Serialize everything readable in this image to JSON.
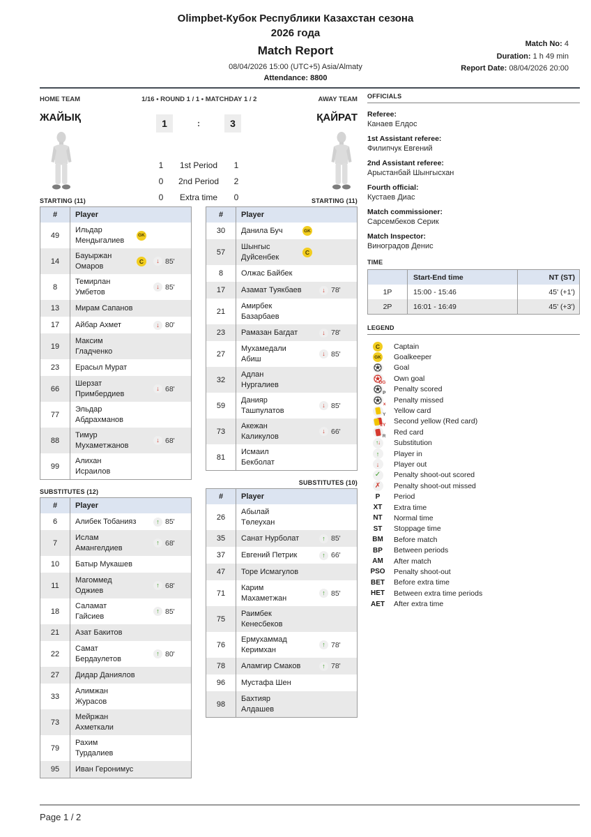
{
  "colors": {
    "table_header_bg": "#dce4f1",
    "row_alt_bg": "#e9e9e9",
    "badge_yellow": "#f2cd1f",
    "player_in_green": "#3a9d23",
    "player_out_red": "#cf3a2e"
  },
  "header": {
    "title_line1": "Olimpbet-Кубок Республики Казахстан сезона",
    "title_line2": "2026 года",
    "report_title": "Match Report",
    "datetime": "08/04/2026 15:00 (UTC+5) Asia/Almaty",
    "attendance": "Attendance: 8800",
    "match_no_label": "Match No:",
    "match_no_value": "4",
    "duration_label": "Duration:",
    "duration_value": "1 h 49 min",
    "report_date_label": "Report Date:",
    "report_date_value": "08/04/2026 20:00"
  },
  "match": {
    "home_team_label": "HOME TEAM",
    "away_team_label": "AWAY TEAM",
    "stage_line": "1/16 • ROUND 1 / 1 • MATCHDAY 1 / 2",
    "home_team": "ЖАЙЫҚ",
    "away_team": "ҚАЙРАТ",
    "score_home": "1",
    "score_separator": ":",
    "score_away": "3",
    "periods": [
      {
        "home": "1",
        "label": "1st Period",
        "away": "1"
      },
      {
        "home": "0",
        "label": "2nd Period",
        "away": "2"
      },
      {
        "home": "0",
        "label": "Extra time",
        "away": "0"
      }
    ]
  },
  "lineups": {
    "header_num": "#",
    "header_player": "Player",
    "home": {
      "starting_label": "STARTING (11)",
      "subs_label": "SUBSTITUTES (12)",
      "starting": [
        {
          "num": "49",
          "name": "Ильдар Мендыгалиев",
          "badge": "GK"
        },
        {
          "num": "14",
          "name": "Бауыржан Омаров",
          "badge": "C",
          "sub": "out",
          "minute": "85'"
        },
        {
          "num": "8",
          "name": "Темирлан Умбетов",
          "sub": "out",
          "minute": "85'"
        },
        {
          "num": "13",
          "name": "Мирам Сапанов"
        },
        {
          "num": "17",
          "name": "Айбар Ахмет",
          "sub": "out",
          "minute": "80'"
        },
        {
          "num": "19",
          "name": "Максим Гладченко"
        },
        {
          "num": "23",
          "name": "Ерасыл Мурат"
        },
        {
          "num": "66",
          "name": "Шерзат Примбердиев",
          "sub": "out",
          "minute": "68'"
        },
        {
          "num": "77",
          "name": "Эльдар Абдрахманов"
        },
        {
          "num": "88",
          "name": "Тимур Мухаметжанов",
          "sub": "out",
          "minute": "68'"
        },
        {
          "num": "99",
          "name": "Алихан Исраилов"
        }
      ],
      "substitutes": [
        {
          "num": "6",
          "name": "Алибек Тобанияз",
          "sub": "in",
          "minute": "85'"
        },
        {
          "num": "7",
          "name": "Ислам Амангелдиев",
          "sub": "in",
          "minute": "68'"
        },
        {
          "num": "10",
          "name": "Батыр Мукашев"
        },
        {
          "num": "11",
          "name": "Магоммед Оджиев",
          "sub": "in",
          "minute": "68'"
        },
        {
          "num": "18",
          "name": "Саламат Гайсиев",
          "sub": "in",
          "minute": "85'"
        },
        {
          "num": "21",
          "name": "Азат Бакитов"
        },
        {
          "num": "22",
          "name": "Самат Бердаулетов",
          "sub": "in",
          "minute": "80'"
        },
        {
          "num": "27",
          "name": "Дидар Даниялов"
        },
        {
          "num": "33",
          "name": "Алимжан Журасов"
        },
        {
          "num": "73",
          "name": "Мейржан Ахметкали"
        },
        {
          "num": "79",
          "name": "Рахим Турдалиев"
        },
        {
          "num": "95",
          "name": "Иван Геронимус"
        }
      ]
    },
    "away": {
      "starting_label": "STARTING (11)",
      "subs_label": "SUBSTITUTES (10)",
      "starting": [
        {
          "num": "30",
          "name": "Данила Буч",
          "badge": "GK"
        },
        {
          "num": "57",
          "name": "Шынгыс Дуйсенбек",
          "badge": "C"
        },
        {
          "num": "8",
          "name": "Олжас Байбек"
        },
        {
          "num": "17",
          "name": "Азамат Туякбаев",
          "sub": "out",
          "minute": "78'"
        },
        {
          "num": "21",
          "name": "Амирбек Базарбаев"
        },
        {
          "num": "23",
          "name": "Рамазан Багдат",
          "sub": "out",
          "minute": "78'"
        },
        {
          "num": "27",
          "name": "Мухамедали Абиш",
          "sub": "out",
          "minute": "85'"
        },
        {
          "num": "32",
          "name": "Адлан Нургалиев"
        },
        {
          "num": "59",
          "name": "Данияр Ташпулатов",
          "sub": "out",
          "minute": "85'"
        },
        {
          "num": "73",
          "name": "Акежан Каликулов",
          "sub": "out",
          "minute": "66'"
        },
        {
          "num": "81",
          "name": "Исмаил Бекболат"
        }
      ],
      "substitutes": [
        {
          "num": "26",
          "name": "Абылай Төлеухан"
        },
        {
          "num": "35",
          "name": "Санат Нурболат",
          "sub": "in",
          "minute": "85'"
        },
        {
          "num": "37",
          "name": "Евгений Петрик",
          "sub": "in",
          "minute": "66'"
        },
        {
          "num": "47",
          "name": "Торе Исмагулов"
        },
        {
          "num": "71",
          "name": "Карим Махаметжан",
          "sub": "in",
          "minute": "85'"
        },
        {
          "num": "75",
          "name": "Раимбек Кенесбеков"
        },
        {
          "num": "76",
          "name": "Ермухаммад Керимхан",
          "sub": "in",
          "minute": "78'"
        },
        {
          "num": "78",
          "name": "Аламгир Смаков",
          "sub": "in",
          "minute": "78'"
        },
        {
          "num": "96",
          "name": "Мустафа Шен"
        },
        {
          "num": "98",
          "name": "Бахтияр Алдашев"
        }
      ]
    }
  },
  "officials": {
    "section_title": "OFFICIALS",
    "items": [
      {
        "label": "Referee:",
        "name": "Канаев Елдос"
      },
      {
        "label": "1st Assistant referee:",
        "name": "Филипчук Евгений"
      },
      {
        "label": "2nd Assistant referee:",
        "name": "Арыстанбай Шынгысхан"
      },
      {
        "label": "Fourth official:",
        "name": "Кустаев Диас"
      },
      {
        "label": "Match commissioner:",
        "name": "Сарсембеков Серик"
      },
      {
        "label": "Match Inspector:",
        "name": "Виноградов Денис"
      }
    ]
  },
  "time": {
    "section_title": "TIME",
    "columns": [
      "",
      "Start-End time",
      "NT (ST)"
    ],
    "rows": [
      {
        "period": "1P",
        "range": "15:00 - 15:46",
        "nt": "45' (+1')"
      },
      {
        "period": "2P",
        "range": "16:01 - 16:49",
        "nt": "45' (+3')"
      }
    ]
  },
  "legend": {
    "section_title": "LEGEND",
    "items": [
      {
        "icon": "captain",
        "label": "Captain"
      },
      {
        "icon": "goalkeeper",
        "label": "Goalkeeper"
      },
      {
        "icon": "goal",
        "label": "Goal"
      },
      {
        "icon": "own-goal",
        "label": "Own goal"
      },
      {
        "icon": "penalty-scored",
        "label": "Penalty scored"
      },
      {
        "icon": "penalty-missed",
        "label": "Penalty missed"
      },
      {
        "icon": "yellow-card",
        "label": "Yellow card"
      },
      {
        "icon": "second-yellow",
        "label": "Second yellow (Red card)"
      },
      {
        "icon": "red-card",
        "label": "Red card"
      },
      {
        "icon": "substitution",
        "label": "Substitution"
      },
      {
        "icon": "player-in",
        "label": "Player in"
      },
      {
        "icon": "player-out",
        "label": "Player out"
      },
      {
        "icon": "pso-scored",
        "label": "Penalty shoot-out scored"
      },
      {
        "icon": "pso-missed",
        "label": "Penalty shoot-out missed"
      },
      {
        "code": "P",
        "label": "Period"
      },
      {
        "code": "XT",
        "label": "Extra time"
      },
      {
        "code": "NT",
        "label": "Normal time"
      },
      {
        "code": "ST",
        "label": "Stoppage time"
      },
      {
        "code": "BM",
        "label": "Before match"
      },
      {
        "code": "BP",
        "label": "Between periods"
      },
      {
        "code": "AM",
        "label": "After match"
      },
      {
        "code": "PSO",
        "label": "Penalty shoot-out"
      },
      {
        "code": "BET",
        "label": "Before extra time"
      },
      {
        "code": "HET",
        "label": "Between extra time periods"
      },
      {
        "code": "AET",
        "label": "After extra time"
      }
    ]
  },
  "footer": {
    "page_label": "Page 1 / 2"
  }
}
